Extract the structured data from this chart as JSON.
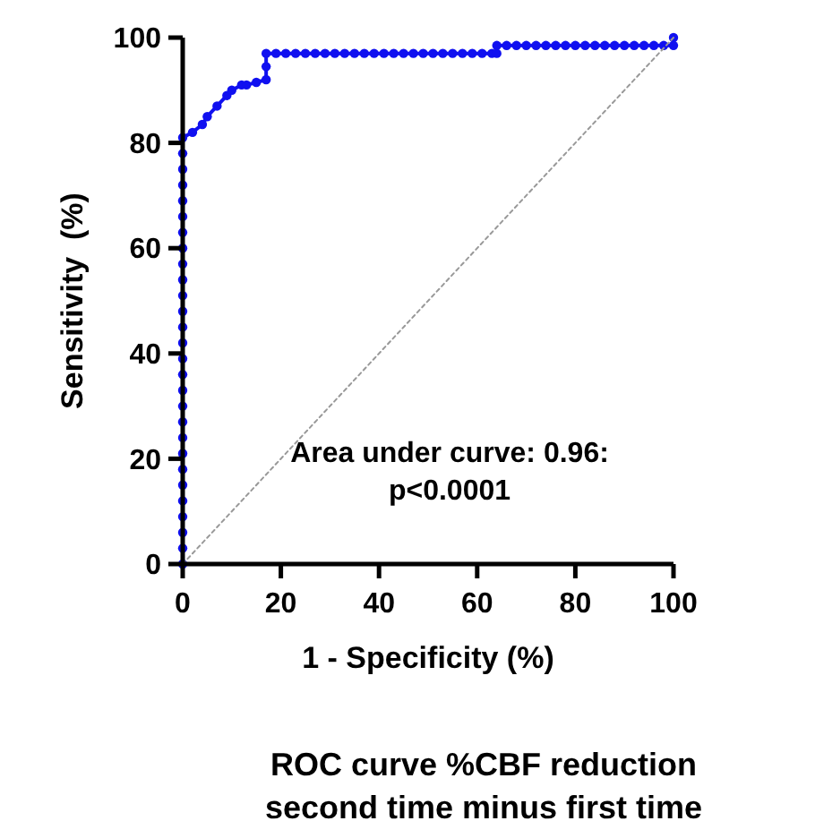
{
  "chart_data": {
    "type": "line",
    "title": "ROC curve %CBF reduction",
    "subtitle": "second time minus first time",
    "xlabel": "1 - Specificity (%)",
    "ylabel": "Sensitivity  (%)",
    "xlim": [
      0,
      100
    ],
    "ylim": [
      0,
      100
    ],
    "xticks": [
      0,
      20,
      40,
      60,
      80,
      100
    ],
    "yticks": [
      0,
      20,
      40,
      60,
      80,
      100
    ],
    "grid": false,
    "annotations": [
      "Area under curve: 0.96:\np<0.0001"
    ],
    "series": [
      {
        "color": "#1010f0",
        "marker": "circle",
        "line_style": "solid",
        "x": [
          0,
          0,
          0,
          0,
          0,
          0,
          0,
          0,
          0,
          0,
          0,
          0,
          0,
          0,
          0,
          0,
          0,
          0,
          0,
          0,
          0,
          0,
          0,
          0,
          0,
          0,
          0,
          0,
          2,
          4,
          5,
          7,
          9,
          10,
          12,
          13,
          15,
          17,
          17,
          17,
          19,
          21,
          23,
          25,
          27,
          29,
          31,
          33,
          35,
          37,
          39,
          41,
          43,
          45,
          47,
          49,
          51,
          53,
          55,
          57,
          59,
          61,
          63,
          64,
          64,
          66,
          68,
          70,
          72,
          74,
          76,
          78,
          80,
          82,
          84,
          86,
          88,
          90,
          92,
          94,
          96,
          98,
          100,
          100
        ],
        "values": [
          0,
          3,
          6,
          9,
          12,
          15,
          18,
          21,
          24,
          27,
          30,
          33,
          36,
          39,
          42,
          45,
          48,
          51,
          54,
          57,
          60,
          63,
          66,
          69,
          72,
          75,
          78,
          81,
          82,
          83.5,
          85,
          87,
          89,
          90,
          91,
          91,
          91.5,
          92,
          94.5,
          97,
          97,
          97,
          97,
          97,
          97,
          97,
          97,
          97,
          97,
          97,
          97,
          97,
          97,
          97,
          97,
          97,
          97,
          97,
          97,
          97,
          97,
          97,
          97,
          97,
          98.5,
          98.5,
          98.5,
          98.5,
          98.5,
          98.5,
          98.5,
          98.5,
          98.5,
          98.5,
          98.5,
          98.5,
          98.5,
          98.5,
          98.5,
          98.5,
          98.5,
          98.5,
          98.5,
          100
        ]
      },
      {
        "color": "#999999",
        "marker": "none",
        "line_style": "dotted",
        "x": [
          0,
          100
        ],
        "values": [
          0,
          100
        ]
      }
    ]
  }
}
